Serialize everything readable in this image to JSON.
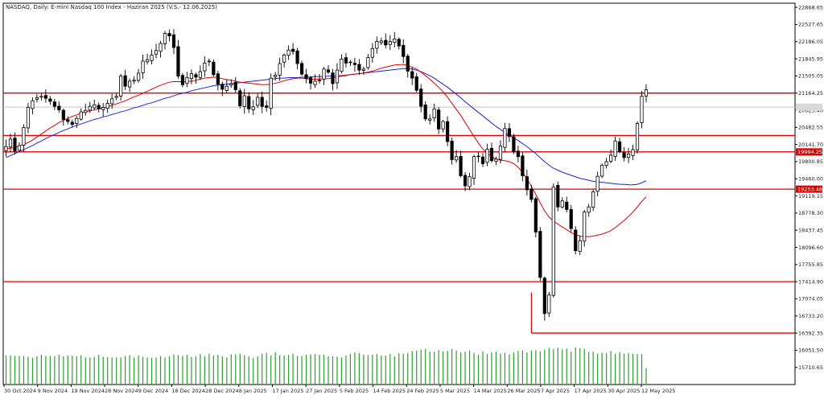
{
  "chart_data": {
    "type": "candlestick",
    "title": "NASDAQ, Daily:  E-mini Nasdaq 100 Index - Haziran 2025 (V.S.- 12.06.2025)",
    "ylim": [
      15370,
      22950
    ],
    "price_ticks": [
      "22868.65",
      "22527.65",
      "22186.05",
      "21845.95",
      "21505.05",
      "21164.25",
      "20823.40",
      "20482.55",
      "20141.70",
      "19800.85",
      "19460.00",
      "19119.15",
      "18778.30",
      "18437.45",
      "18096.60",
      "17755.85",
      "17414.90",
      "17074.05",
      "16733.20",
      "16392.35",
      "16051.50",
      "15710.65"
    ],
    "date_ticks": [
      "30 Oct 2024",
      "9 Nov 2024",
      "19 Nov 2024",
      "28 Nov 2024",
      "9 Dec 2024",
      "18 Dec 2024",
      "28 Dec 2024",
      "8 Jan 2025",
      "17 Jan 2025",
      "27 Jan 2025",
      "5 Feb 2025",
      "14 Feb 2025",
      "24 Feb 2025",
      "5 Mar 2025",
      "14 Mar 2025",
      "26 Mar 2025",
      "7 Apr 2025",
      "17 Apr 2025",
      "30 Apr 2025",
      "12 May 2025"
    ],
    "series": [
      {
        "name": "candles",
        "close": [
          20100,
          20250,
          20010,
          20120,
          20480,
          20880,
          21010,
          21070,
          21100,
          21060,
          21000,
          20900,
          20830,
          20640,
          20600,
          20540,
          20660,
          20790,
          20820,
          20900,
          20930,
          20850,
          20880,
          20960,
          21050,
          21100,
          21500,
          21300,
          21400,
          21420,
          21560,
          21800,
          21830,
          21920,
          22010,
          22150,
          22350,
          22300,
          22070,
          21500,
          21330,
          21470,
          21550,
          21480,
          21590,
          21760,
          21800,
          21530,
          21340,
          21240,
          21300,
          21350,
          21230,
          20910,
          21110,
          20850,
          20890,
          21080,
          20900,
          20880,
          21460,
          21520,
          21750,
          21920,
          22020,
          21990,
          21750,
          21540,
          21450,
          21360,
          21400,
          21420,
          21640,
          21580,
          21350,
          21620,
          21840,
          21760,
          21780,
          21730,
          21620,
          21640,
          21870,
          22050,
          22190,
          22200,
          22120,
          22190,
          22240,
          22100,
          21890,
          21600,
          21460,
          21220,
          20900,
          20650,
          20650,
          20850,
          20450,
          20600,
          20200,
          19840,
          19900,
          19520,
          19320,
          19500,
          19900,
          19900,
          19760,
          20050,
          19820,
          19850,
          20110,
          20460,
          20300,
          20000,
          19900,
          19520,
          19240,
          19050,
          18400,
          17500,
          16780,
          17150,
          19300,
          18900,
          19020,
          18850,
          18470,
          18030,
          18230,
          18800,
          18900,
          19200,
          19510,
          19730,
          19800,
          19930,
          20210,
          20000,
          19880,
          19950,
          20040,
          20560,
          21100,
          21230
        ]
      },
      {
        "name": "moving-average-fast-red",
        "values": [
          20050,
          20070,
          20080,
          20110,
          20140,
          20180,
          20230,
          20290,
          20350,
          20410,
          20470,
          20520,
          20580,
          20620,
          20660,
          20700,
          20730,
          20760,
          20790,
          20810,
          20830,
          20850,
          20870,
          20890,
          20920,
          20950,
          20980,
          21010,
          21050,
          21090,
          21120,
          21160,
          21200,
          21240,
          21280,
          21320,
          21350,
          21380,
          21390,
          21390,
          21390,
          21390,
          21400,
          21420,
          21440,
          21460,
          21470,
          21480,
          21470,
          21450,
          21430,
          21420,
          21400,
          21380,
          21370,
          21360,
          21350,
          21340,
          21330,
          21330,
          21340,
          21360,
          21380,
          21410,
          21430,
          21450,
          21460,
          21460,
          21450,
          21440,
          21440,
          21440,
          21450,
          21450,
          21460,
          21480,
          21500,
          21510,
          21530,
          21540,
          21550,
          21560,
          21580,
          21600,
          21630,
          21660,
          21680,
          21700,
          21720,
          21730,
          21730,
          21710,
          21680,
          21640,
          21580,
          21510,
          21440,
          21360,
          21280,
          21190,
          21080,
          20960,
          20840,
          20720,
          20580,
          20440,
          20300,
          20170,
          20050,
          19970,
          19900,
          19850,
          19830,
          19820,
          19800,
          19760,
          19690,
          19590,
          19460,
          19310,
          19150,
          18980,
          18820,
          18700,
          18620,
          18560,
          18500,
          18450,
          18390,
          18350,
          18320,
          18310,
          18310,
          18320,
          18340,
          18360,
          18390,
          18430,
          18490,
          18560,
          18630,
          18710,
          18800,
          18900,
          19010,
          19100
        ]
      },
      {
        "name": "moving-average-slow-blue",
        "values": [
          19880,
          19920,
          19960,
          20000,
          20040,
          20080,
          20120,
          20170,
          20210,
          20260,
          20300,
          20340,
          20380,
          20420,
          20450,
          20490,
          20520,
          20550,
          20580,
          20610,
          20640,
          20660,
          20690,
          20710,
          20740,
          20760,
          20790,
          20810,
          20840,
          20870,
          20890,
          20920,
          20950,
          20970,
          21000,
          21030,
          21060,
          21080,
          21110,
          21140,
          21160,
          21180,
          21210,
          21230,
          21250,
          21270,
          21290,
          21310,
          21320,
          21330,
          21340,
          21350,
          21360,
          21370,
          21380,
          21390,
          21400,
          21410,
          21420,
          21430,
          21440,
          21450,
          21460,
          21460,
          21470,
          21470,
          21470,
          21480,
          21480,
          21480,
          21490,
          21490,
          21490,
          21500,
          21500,
          21510,
          21510,
          21520,
          21530,
          21540,
          21550,
          21560,
          21570,
          21580,
          21590,
          21600,
          21610,
          21620,
          21630,
          21640,
          21650,
          21650,
          21640,
          21620,
          21590,
          21550,
          21510,
          21460,
          21400,
          21340,
          21280,
          21210,
          21140,
          21070,
          20990,
          20920,
          20850,
          20780,
          20710,
          20640,
          20570,
          20500,
          20440,
          20380,
          20320,
          20270,
          20220,
          20160,
          20100,
          20030,
          19960,
          19880,
          19800,
          19730,
          19670,
          19630,
          19590,
          19560,
          19530,
          19500,
          19470,
          19450,
          19430,
          19410,
          19400,
          19390,
          19380,
          19370,
          19360,
          19350,
          19350,
          19340,
          19340,
          19350,
          19380,
          19420
        ]
      },
      {
        "name": "volume",
        "values": [
          0.73,
          0.73,
          0.72,
          0.72,
          0.72,
          0.7,
          0.67,
          0.71,
          0.75,
          0.72,
          0.72,
          0.71,
          0.75,
          0.71,
          0.73,
          0.73,
          0.71,
          0.74,
          0.68,
          0.68,
          0.7,
          0.75,
          0.7,
          0.69,
          0.68,
          0.68,
          0.68,
          0.72,
          0.74,
          0.68,
          0.73,
          0.7,
          0.68,
          0.67,
          0.68,
          0.72,
          0.68,
          0.71,
          0.76,
          0.74,
          0.72,
          0.75,
          0.69,
          0.71,
          0.77,
          0.71,
          0.78,
          0.73,
          0.75,
          0.71,
          0.68,
          0.76,
          0.76,
          0.78,
          0.74,
          0.71,
          0.67,
          0.71,
          0.78,
          0.8,
          0.73,
          0.82,
          0.74,
          0.73,
          0.74,
          0.78,
          0.72,
          0.72,
          0.75,
          0.76,
          0.77,
          0.75,
          0.75,
          0.71,
          0.71,
          0.7,
          0.68,
          0.73,
          0.78,
          0.81,
          0.79,
          0.75,
          0.74,
          0.75,
          0.77,
          0.73,
          0.73,
          0.77,
          0.71,
          0.79,
          0.78,
          0.79,
          0.85,
          0.86,
          0.88,
          0.9,
          0.83,
          0.83,
          0.87,
          0.84,
          0.85,
          0.9,
          0.86,
          0.81,
          0.83,
          0.86,
          0.8,
          0.75,
          0.84,
          0.77,
          0.81,
          0.83,
          0.78,
          0.8,
          0.76,
          0.81,
          0.85,
          0.86,
          0.81,
          0.86,
          0.87,
          0.84,
          0.88,
          0.93,
          0.9,
          0.93,
          0.89,
          0.91,
          0.83,
          0.94,
          0.92,
          0.9,
          0.82,
          0.83,
          0.78,
          0.8,
          0.79,
          0.85,
          0.78,
          0.82,
          0.78,
          0.79,
          0.78,
          0.77,
          0.77,
          0.4
        ]
      }
    ],
    "horizontal_levels": [
      21164.25,
      20320.0,
      19994.25,
      19253.48,
      17414.9
    ],
    "ray_segments": [
      {
        "price": 21164.25,
        "from_bar": 49,
        "color": "#e00000"
      },
      {
        "price": 16392.35,
        "from_bar": 119,
        "color": "#e00000"
      }
    ],
    "vertical_connector": {
      "bar": 119,
      "from_price": 16392.35,
      "to_price": 17200
    },
    "price_tags": [
      {
        "price": 20885,
        "label": "",
        "style": "current"
      },
      {
        "price": 19994.25,
        "label": "19994.25",
        "style": "level"
      },
      {
        "price": 19253.48,
        "label": "19253.48",
        "style": "level"
      }
    ],
    "colors": {
      "candle": "#000000",
      "bull_fill": "#ffffff",
      "bear_fill": "#000000",
      "level_line": "#e00000",
      "ma_fast": "#e00000",
      "ma_slow": "#2020e0",
      "volume": "#2ca02c",
      "grid_line": "#c8c8c8"
    }
  }
}
